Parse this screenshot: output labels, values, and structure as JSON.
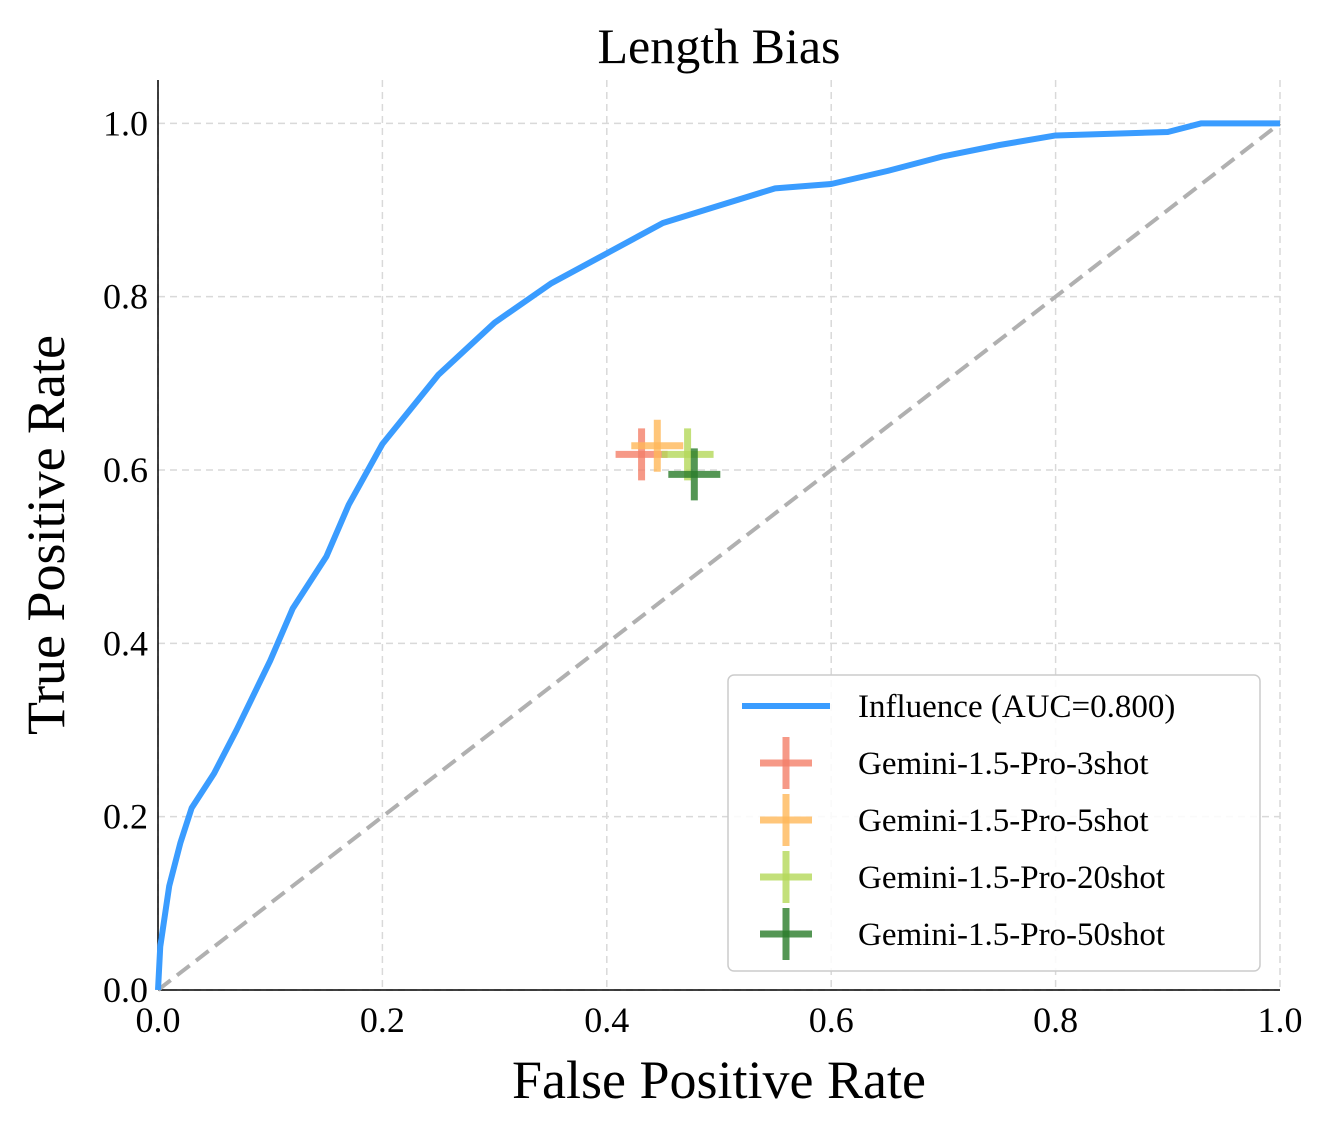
{
  "chart_data": {
    "type": "line",
    "title": "Length Bias",
    "x_label": "False Positive Rate",
    "y_label": "True Positive Rate",
    "xlim": [
      0,
      1
    ],
    "ylim": [
      0,
      1.05
    ],
    "xticks": [
      {
        "value": 0,
        "label": "0.0"
      },
      0.2,
      0.4,
      0.6,
      0.8,
      {
        "value": 1,
        "label": "1.0"
      }
    ],
    "yticks": [
      {
        "value": 0,
        "label": "0.0"
      },
      0.2,
      0.4,
      0.6,
      0.8,
      {
        "value": 1,
        "label": "1.0"
      }
    ],
    "grid": true,
    "legend": "lower right",
    "series": [
      {
        "name": "Influence (AUC=0.800)",
        "type": "line",
        "color": "#3a9cff",
        "x": [
          0,
          0.002,
          0.01,
          0.02,
          0.03,
          0.05,
          0.07,
          0.1,
          0.12,
          0.15,
          0.17,
          0.2,
          0.25,
          0.3,
          0.35,
          0.4,
          0.45,
          0.5,
          0.55,
          0.6,
          0.65,
          0.7,
          0.75,
          0.8,
          0.9,
          0.93,
          1
        ],
        "values": [
          0,
          0.05,
          0.12,
          0.17,
          0.21,
          0.25,
          0.3,
          0.38,
          0.44,
          0.5,
          0.56,
          0.63,
          0.71,
          0.77,
          0.815,
          0.85,
          0.885,
          0.905,
          0.925,
          0.93,
          0.945,
          0.962,
          0.975,
          0.986,
          0.99,
          1.0,
          1.0
        ]
      },
      {
        "name": "Gemini-1.5-Pro-3shot",
        "type": "scatter",
        "color": "#f4806a",
        "x": [
          0.431
        ],
        "values": [
          0.618
        ]
      },
      {
        "name": "Gemini-1.5-Pro-5shot",
        "type": "scatter",
        "color": "#ffb85a",
        "x": [
          0.445
        ],
        "values": [
          0.628
        ]
      },
      {
        "name": "Gemini-1.5-Pro-20shot",
        "type": "scatter",
        "color": "#b5d95a",
        "x": [
          0.472
        ],
        "values": [
          0.618
        ]
      },
      {
        "name": "Gemini-1.5-Pro-50shot",
        "type": "scatter",
        "color": "#2a7d2a",
        "x": [
          0.478
        ],
        "values": [
          0.595
        ]
      }
    ]
  }
}
